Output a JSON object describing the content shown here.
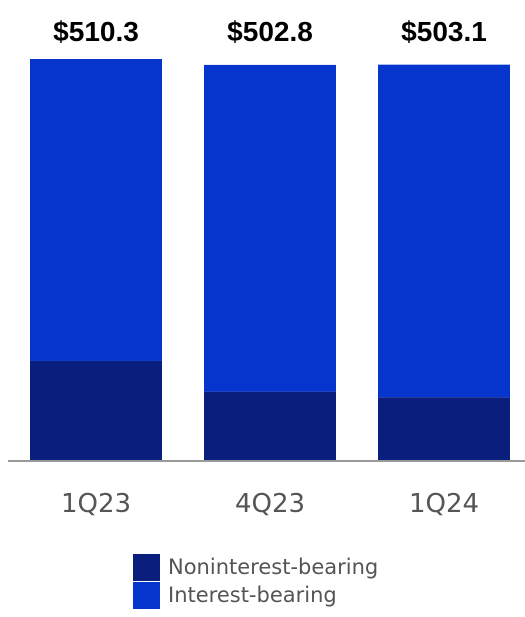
{
  "chart_data": {
    "type": "bar",
    "stacked": true,
    "categories": [
      "1Q23",
      "4Q23",
      "1Q24"
    ],
    "totals": [
      "$510.3",
      "$502.8",
      "$503.1"
    ],
    "series": [
      {
        "name": "Noninterest-bearing",
        "values": [
          127.0,
          88.0,
          81.0
        ],
        "color": "#0a1f7d"
      },
      {
        "name": "Interest-bearing",
        "values": [
          383.3,
          414.8,
          422.1
        ],
        "color": "#0535cc"
      }
    ],
    "ylim": [
      0,
      510.3
    ],
    "legend_position": "bottom-center",
    "grid": false
  }
}
